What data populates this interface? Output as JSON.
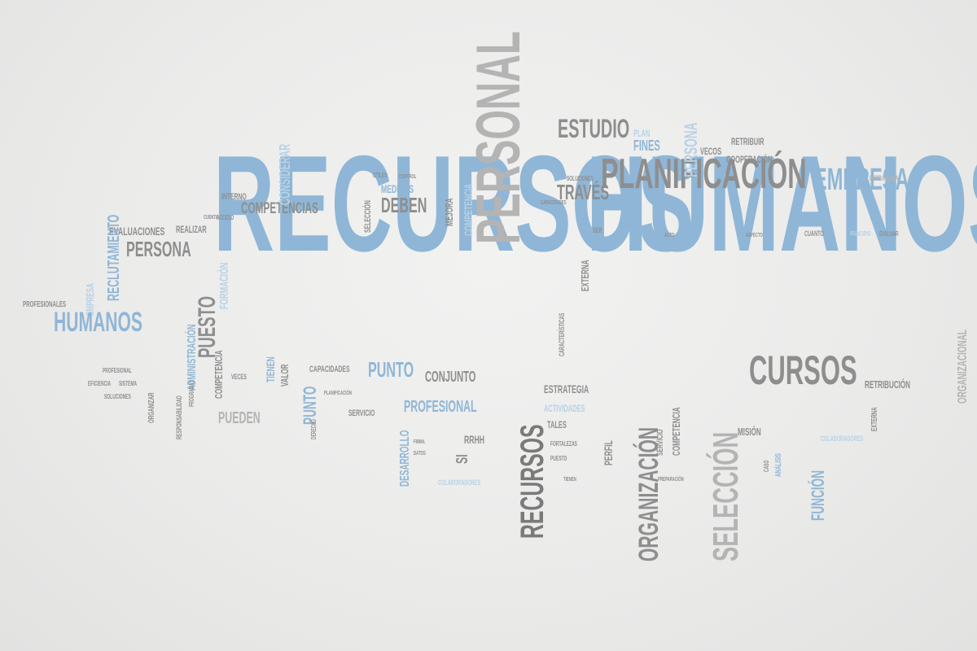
{
  "colors": {
    "background": "#ebebea",
    "gray": "#8e8e8e",
    "dark": "#7a7a7a",
    "light": "#b4b4b4",
    "blue": "#8fb6d6",
    "paleBlue": "#b7d2e6"
  },
  "words": [
    {
      "text": "RECURSOS",
      "color": "blue"
    },
    {
      "text": "HUMANOS",
      "color": "blue"
    },
    {
      "text": "PERSONAL",
      "color": "light"
    },
    {
      "text": "PLANIFICACIÓN",
      "color": "gray"
    },
    {
      "text": "EMPRESA",
      "color": "blue"
    },
    {
      "text": "ESTUDIO",
      "color": "gray"
    },
    {
      "text": "TRAVÉS",
      "color": "gray"
    },
    {
      "text": "PLAN",
      "color": "paleBlue"
    },
    {
      "text": "FINES",
      "color": "blue"
    },
    {
      "text": "PERSONA",
      "color": "paleBlue"
    },
    {
      "text": "VECOS",
      "color": "gray"
    },
    {
      "text": "RETRIBUIR",
      "color": "gray"
    },
    {
      "text": "COOPERACIÓN",
      "color": "gray"
    },
    {
      "text": "CURSOS",
      "color": "gray"
    },
    {
      "text": "RETRIBUCIÓN",
      "color": "gray"
    },
    {
      "text": "ORGANIZACIONAL",
      "color": "light"
    },
    {
      "text": "COMPETENCIAS",
      "color": "gray"
    },
    {
      "text": "DEBEN",
      "color": "gray"
    },
    {
      "text": "MEDIDAS",
      "color": "blue"
    },
    {
      "text": "MEJORA",
      "color": "gray"
    },
    {
      "text": "COMPETENCIA",
      "color": "paleBlue"
    },
    {
      "text": "CONSIDERAR",
      "color": "paleBlue"
    },
    {
      "text": "INTERNO",
      "color": "gray"
    },
    {
      "text": "EVALUACIONES",
      "color": "gray"
    },
    {
      "text": "REALIZAR",
      "color": "gray"
    },
    {
      "text": "PERSONA",
      "color": "gray"
    },
    {
      "text": "RECLUTAMIENTO",
      "color": "blue"
    },
    {
      "text": "EMPRESA",
      "color": "paleBlue"
    },
    {
      "text": "PROFESIONALES",
      "color": "gray"
    },
    {
      "text": "HUMANOS",
      "color": "blue"
    },
    {
      "text": "PUESTO",
      "color": "gray"
    },
    {
      "text": "ADMINISTRACIÓN",
      "color": "blue"
    },
    {
      "text": "FORMACIÓN",
      "color": "paleBlue"
    },
    {
      "text": "COMPETENCIA",
      "color": "gray"
    },
    {
      "text": "TIENEN",
      "color": "blue"
    },
    {
      "text": "VALOR",
      "color": "gray"
    },
    {
      "text": "PUNTO",
      "color": "blue"
    },
    {
      "text": "PUEDEN",
      "color": "light"
    },
    {
      "text": "CAPACIDADES",
      "color": "gray"
    },
    {
      "text": "PUNTO",
      "color": "blue"
    },
    {
      "text": "CONJUNTO",
      "color": "gray"
    },
    {
      "text": "PROFESIONAL",
      "color": "blue"
    },
    {
      "text": "SERVICIO",
      "color": "gray"
    },
    {
      "text": "DESARROLLO",
      "color": "blue"
    },
    {
      "text": "SI",
      "color": "gray"
    },
    {
      "text": "RRHH",
      "color": "gray"
    },
    {
      "text": "COLABORADORES",
      "color": "paleBlue"
    },
    {
      "text": "RECURSOS",
      "color": "dark"
    },
    {
      "text": "ESTRATEGIA",
      "color": "gray"
    },
    {
      "text": "ACTIVIDADES",
      "color": "paleBlue"
    },
    {
      "text": "TALES",
      "color": "gray"
    },
    {
      "text": "PERFIL",
      "color": "gray"
    },
    {
      "text": "ORGANIZACIÓN",
      "color": "gray"
    },
    {
      "text": "SERVICIO",
      "color": "gray"
    },
    {
      "text": "COMPETENCIA",
      "color": "gray"
    },
    {
      "text": "SELECCIÓN",
      "color": "light"
    },
    {
      "text": "MISIÓN",
      "color": "gray"
    },
    {
      "text": "FUNCIÓN",
      "color": "blue"
    },
    {
      "text": "COLABORADORES",
      "color": "paleBlue"
    },
    {
      "text": "EXTERNA",
      "color": "gray"
    },
    {
      "text": "CARACTERÍSTICAS",
      "color": "gray"
    },
    {
      "text": "SELECCIÓN",
      "color": "gray"
    },
    {
      "text": "SOLUCIONES",
      "color": "gray"
    },
    {
      "text": "SER",
      "color": "gray"
    },
    {
      "text": "ESTRATEGIA",
      "color": "light"
    },
    {
      "text": "CUANTO",
      "color": "gray"
    },
    {
      "text": "PRINCIPIO",
      "color": "paleBlue"
    },
    {
      "text": "EVALUAR",
      "color": "gray"
    },
    {
      "text": "ÚTILES",
      "color": "gray"
    },
    {
      "text": "CONTROL",
      "color": "gray"
    },
    {
      "text": "ACCESO",
      "color": "gray"
    },
    {
      "text": "CUENTA",
      "color": "gray"
    },
    {
      "text": "PROFESIONAL",
      "color": "gray"
    },
    {
      "text": "EFICIENCIA",
      "color": "gray"
    },
    {
      "text": "SISTEMA",
      "color": "gray"
    },
    {
      "text": "SOLUCIONES",
      "color": "gray"
    },
    {
      "text": "ORGANIZAR",
      "color": "gray"
    },
    {
      "text": "RESPONSABILIDAD",
      "color": "gray"
    },
    {
      "text": "PROGRAMAS",
      "color": "gray"
    },
    {
      "text": "VECES",
      "color": "gray"
    },
    {
      "text": "DERECHO",
      "color": "gray"
    },
    {
      "text": "PLANIFICACIÓN",
      "color": "gray"
    },
    {
      "text": "FIRMA",
      "color": "gray"
    },
    {
      "text": "DATOS",
      "color": "gray"
    },
    {
      "text": "FORTALEZAS",
      "color": "gray"
    },
    {
      "text": "PUESTO",
      "color": "gray"
    },
    {
      "text": "TIENEN",
      "color": "gray"
    },
    {
      "text": "CASO",
      "color": "gray"
    },
    {
      "text": "ANÁLISIS",
      "color": "blue"
    },
    {
      "text": "PREPARACIÓN",
      "color": "gray"
    },
    {
      "text": "ACTO",
      "color": "gray"
    },
    {
      "text": "ASPECTO",
      "color": "gray"
    },
    {
      "text": "CAPACIDADES",
      "color": "gray"
    },
    {
      "text": "EXTERNA",
      "color": "gray"
    }
  ]
}
